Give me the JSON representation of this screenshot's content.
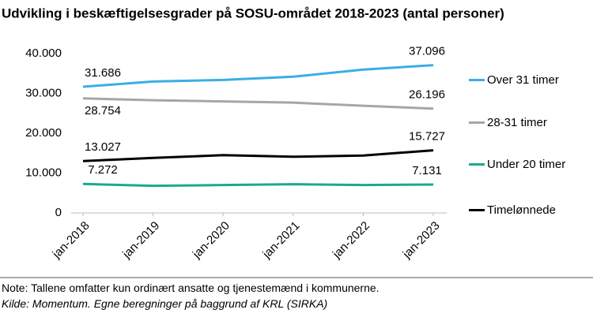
{
  "chart_data": {
    "type": "line",
    "title": "Udvikling i beskæftigelsesgrader på SOSU-området 2018-2023 (antal personer)",
    "categories": [
      "jan-2018",
      "jan-2019",
      "jan-2020",
      "jan-2021",
      "jan-2022",
      "jan-2023"
    ],
    "series": [
      {
        "name": "Over 31 timer",
        "color": "#3aaee6",
        "values": [
          31686,
          33000,
          33400,
          34200,
          36000,
          37096
        ],
        "value_labels": [
          "31.686",
          null,
          null,
          null,
          null,
          "37.096"
        ]
      },
      {
        "name": "28-31 timer",
        "color": "#a6a6a6",
        "values": [
          28754,
          28300,
          28000,
          27700,
          26900,
          26196
        ],
        "value_labels": [
          "28.754",
          null,
          null,
          null,
          null,
          "26.196"
        ]
      },
      {
        "name": "Under 20 timer",
        "color": "#1aaa8c",
        "values": [
          7272,
          6800,
          7000,
          7200,
          7000,
          7131
        ],
        "value_labels": [
          "7.272",
          null,
          null,
          null,
          null,
          "7.131"
        ]
      },
      {
        "name": "Timelønnede",
        "color": "#000000",
        "values": [
          13027,
          13800,
          14500,
          14100,
          14400,
          15727
        ],
        "value_labels": [
          "13.027",
          null,
          null,
          null,
          null,
          "15.727"
        ]
      }
    ],
    "ylim": [
      0,
      40000
    ],
    "yticks": [
      0,
      {
        "value": 10000,
        "label": "10.000"
      },
      {
        "value": 20000,
        "label": "20.000"
      },
      {
        "value": 30000,
        "label": "30.000"
      },
      {
        "value": 40000,
        "label": "40.000"
      }
    ],
    "grid": false,
    "legend": "right",
    "note": "Note: Tallene omfatter kun ordinært ansatte og tjenestemænd i kommunerne.",
    "source": "Kilde: Momentum. Egne beregninger på baggrund af KRL (SIRKA)"
  }
}
